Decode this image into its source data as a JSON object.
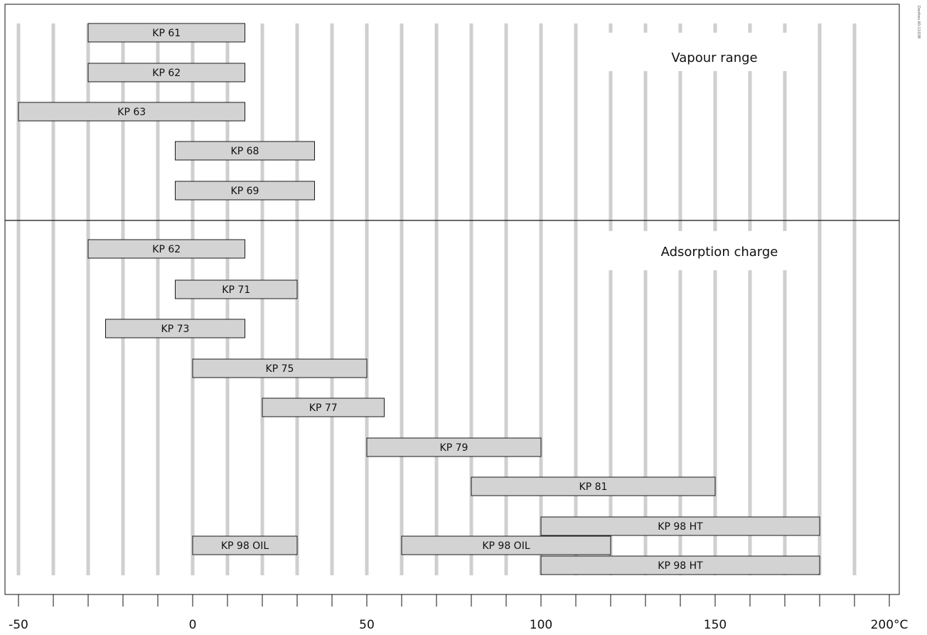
{
  "chart_data": {
    "type": "bar",
    "orientation": "horizontal-range",
    "x_unit": "°C",
    "xlim": [
      -50,
      200
    ],
    "grid": true,
    "xticks": [
      -50,
      0,
      50,
      100,
      150,
      200
    ],
    "xtick_labels": [
      "-50",
      "0",
      "50",
      "100",
      "150",
      "200°C"
    ],
    "sections": [
      {
        "label": "Vapour range",
        "bars": [
          {
            "name": "KP 61",
            "start": -30,
            "end": 15
          },
          {
            "name": "KP 62",
            "start": -30,
            "end": 15
          },
          {
            "name": "KP 63",
            "start": -50,
            "end": 15
          },
          {
            "name": "KP 68",
            "start": -5,
            "end": 35
          },
          {
            "name": "KP 69",
            "start": -5,
            "end": 35
          }
        ]
      },
      {
        "label": "Adsorption charge",
        "bars": [
          {
            "name": "KP 62",
            "start": -30,
            "end": 15
          },
          {
            "name": "KP 71",
            "start": -5,
            "end": 30
          },
          {
            "name": "KP 73",
            "start": -25,
            "end": 15
          },
          {
            "name": "KP 75",
            "start": 0,
            "end": 50
          },
          {
            "name": "KP 77",
            "start": 20,
            "end": 55
          },
          {
            "name": "KP 79",
            "start": 50,
            "end": 100
          },
          {
            "name": "KP 81",
            "start": 80,
            "end": 150
          },
          {
            "name": "KP 98 HT",
            "start": 100,
            "end": 180
          },
          {
            "name": "KP 98 OIL",
            "start": 0,
            "end": 30
          },
          {
            "name": "KP 98 OIL",
            "start": 60,
            "end": 120
          },
          {
            "name": "KP 98 HT",
            "start": 100,
            "end": 180
          }
        ]
      }
    ],
    "watermark": "Danfoss 60-1103B"
  },
  "colors": {
    "bar_fill": "#d3d3d3",
    "bar_stroke": "#1a1a1a",
    "grid": "#cfcfcf",
    "axis": "#111111"
  }
}
